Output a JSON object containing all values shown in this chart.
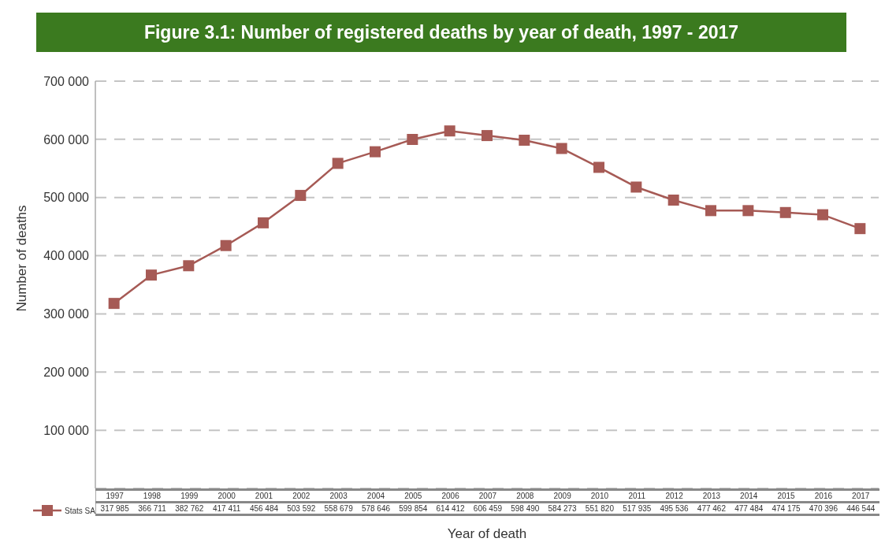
{
  "chart_data": {
    "type": "line",
    "title": "Figure 3.1: Number of registered deaths by year of death, 1997 - 2017",
    "xlabel": "Year of death",
    "ylabel": "Number of deaths",
    "categories": [
      "1997",
      "1998",
      "1999",
      "2000",
      "2001",
      "2002",
      "2003",
      "2004",
      "2005",
      "2006",
      "2007",
      "2008",
      "2009",
      "2010",
      "2011",
      "2012",
      "2013",
      "2014",
      "2015",
      "2016",
      "2017"
    ],
    "series": [
      {
        "name": "Stats SA",
        "color": "#a65a55",
        "values": [
          317985,
          366711,
          382762,
          417411,
          456484,
          503592,
          558679,
          578646,
          599854,
          614412,
          606459,
          598490,
          584273,
          551820,
          517935,
          495536,
          477462,
          477484,
          474175,
          470396,
          446544
        ],
        "value_labels": [
          "317 985",
          "366 711",
          "382 762",
          "417 411",
          "456 484",
          "503 592",
          "558 679",
          "578 646",
          "599 854",
          "614 412",
          "606 459",
          "598 490",
          "584 273",
          "551 820",
          "517 935",
          "495 536",
          "477 462",
          "477 484",
          "474 175",
          "470 396",
          "446 544"
        ]
      }
    ],
    "ylim": [
      0,
      700000
    ],
    "yticks": [
      {
        "value": 0,
        "label": null
      },
      {
        "value": 100000,
        "label": "100 000"
      },
      {
        "value": 200000,
        "label": "200 000"
      },
      {
        "value": 300000,
        "label": "300 000"
      },
      {
        "value": 400000,
        "label": "400 000"
      },
      {
        "value": 500000,
        "label": "500 000"
      },
      {
        "value": 600000,
        "label": "600 000"
      },
      {
        "value": 700000,
        "label": "700 000"
      }
    ],
    "grid": "y",
    "legend": "bottom left",
    "marker": "square",
    "line_style": "solid"
  }
}
